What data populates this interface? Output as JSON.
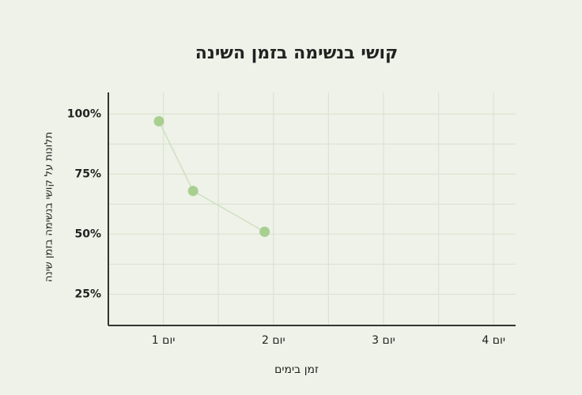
{
  "chart_data": {
    "type": "line",
    "title": "קושי בנשימה בזמן השינה",
    "x_label": "זמן בימים",
    "y_label": "תלונות על קושי בנשימה בזמן שינה",
    "x": [
      0.96,
      1.27,
      1.92
    ],
    "series": [
      {
        "color": "#a9cf90",
        "values": [
          97,
          68,
          51
        ]
      }
    ],
    "xlim": [
      0.5,
      4.2
    ],
    "ylim": [
      12,
      109
    ],
    "xticks": [
      {
        "value": 1,
        "label": "יום 1"
      },
      {
        "value": 2,
        "label": "יום 2"
      },
      {
        "value": 3,
        "label": "יום 3"
      },
      {
        "value": 4,
        "label": "יום 4"
      }
    ],
    "yticks": [
      {
        "value": 25,
        "label": "25%"
      },
      {
        "value": 50,
        "label": "50%"
      },
      {
        "value": 75,
        "label": "75%"
      },
      {
        "value": 100,
        "label": "100%"
      }
    ],
    "grid": true,
    "minor_grid": true
  }
}
